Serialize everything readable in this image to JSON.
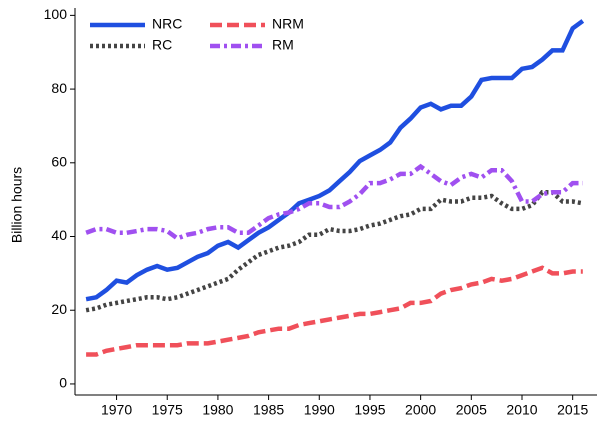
{
  "chart_data": {
    "type": "line",
    "ylabel": "Billion hours",
    "x": [
      1967,
      1968,
      1969,
      1970,
      1971,
      1972,
      1973,
      1974,
      1975,
      1976,
      1977,
      1978,
      1979,
      1980,
      1981,
      1982,
      1983,
      1984,
      1985,
      1986,
      1987,
      1988,
      1989,
      1990,
      1991,
      1992,
      1993,
      1994,
      1995,
      1996,
      1997,
      1998,
      1999,
      2000,
      2001,
      2002,
      2003,
      2004,
      2005,
      2006,
      2007,
      2008,
      2009,
      2010,
      2011,
      2012,
      2013,
      2014,
      2015,
      2016
    ],
    "series": [
      {
        "name": "NRC",
        "color": "#1f4fe0",
        "dash": "solid",
        "values": [
          23,
          23.5,
          25.5,
          28,
          27.5,
          29.5,
          31,
          32,
          31,
          31.5,
          33,
          34.5,
          35.5,
          37.5,
          38.5,
          37,
          39,
          41,
          42.5,
          44.5,
          46.5,
          49,
          50,
          51,
          52.5,
          55,
          57.5,
          60.5,
          62,
          63.5,
          65.5,
          69.5,
          72,
          75,
          76,
          74.5,
          75.5,
          75.5,
          78,
          82.5,
          83,
          83,
          83,
          85.5,
          86,
          88,
          90.5,
          90.5,
          96.5,
          98.5
        ]
      },
      {
        "name": "RC",
        "color": "#444444",
        "dash": "dot",
        "values": [
          20,
          20.5,
          21.5,
          22,
          22.5,
          23,
          23.5,
          23.5,
          23,
          23.5,
          24.5,
          25.5,
          26.5,
          27.5,
          28.5,
          31,
          33,
          35,
          36,
          37,
          37.5,
          38.5,
          40.5,
          40.5,
          42,
          41.5,
          41.5,
          42,
          43,
          43.5,
          44.5,
          45.5,
          46,
          47.5,
          47.5,
          50,
          49.5,
          49.5,
          50.5,
          50.5,
          51,
          49,
          47.5,
          47.5,
          48.5,
          52,
          52,
          49.5,
          49.5,
          49
        ]
      },
      {
        "name": "NRM",
        "color": "#f0505a",
        "dash": "dash",
        "values": [
          8,
          8,
          9,
          9.5,
          10,
          10.5,
          10.5,
          10.5,
          10.5,
          10.5,
          11,
          11,
          11,
          11.5,
          12,
          12.5,
          13,
          14,
          14.5,
          15,
          15,
          16,
          16.5,
          17,
          17.5,
          18,
          18.5,
          19,
          19,
          19.5,
          20,
          20.5,
          22,
          22,
          22.5,
          24.5,
          25.5,
          26,
          27,
          27.5,
          28.5,
          28,
          28.5,
          29.5,
          30.5,
          31.5,
          30,
          30,
          30.5,
          30.5
        ]
      },
      {
        "name": "RM",
        "color": "#a050f0",
        "dash": "dashdot",
        "values": [
          41,
          42,
          42,
          41,
          41,
          41.5,
          42,
          42,
          41.5,
          39.5,
          40.5,
          41,
          42,
          42.5,
          42.5,
          41,
          41,
          43,
          45,
          46,
          46.5,
          47.5,
          49,
          49,
          48,
          48,
          49.5,
          51.5,
          54.5,
          54.5,
          55.5,
          57,
          57,
          59,
          57,
          55,
          54,
          56,
          57,
          56,
          58,
          58,
          55,
          49.5,
          49.5,
          51.5,
          52,
          52,
          54.5,
          54.5
        ]
      }
    ],
    "xlim": [
      1965.9,
      2017.4
    ],
    "ylim": [
      -3,
      102
    ],
    "xticks": [
      1970,
      1975,
      1980,
      1985,
      1990,
      1995,
      2000,
      2005,
      2010,
      2015
    ],
    "yticks": [
      0,
      20,
      40,
      60,
      80,
      100
    ],
    "legend": "upper-left"
  }
}
